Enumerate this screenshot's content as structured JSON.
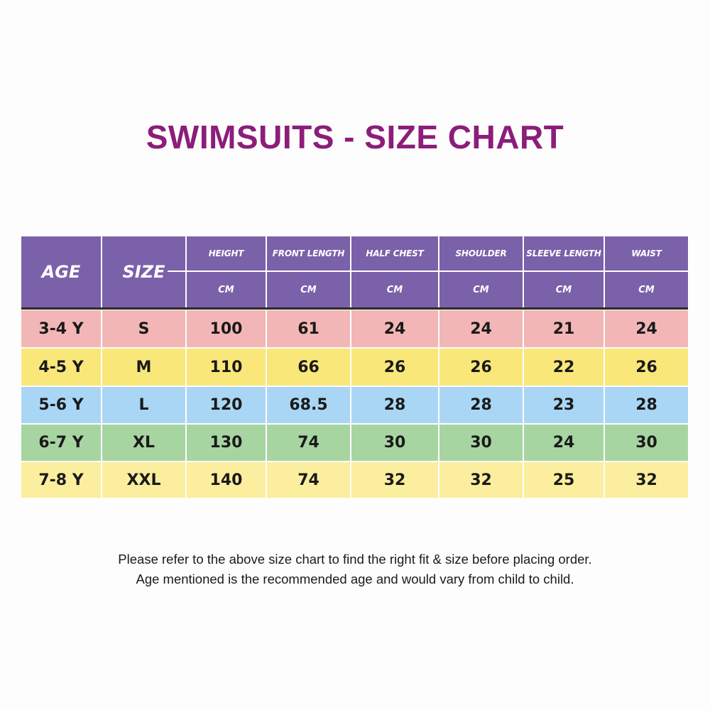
{
  "title": "SWIMSUITS - SIZE CHART",
  "title_color": "#8c1d7a",
  "header_color": "#7a61a9",
  "table": {
    "age_label": "AGE",
    "size_label": "SIZE",
    "measure_columns": [
      {
        "label": "HEIGHT",
        "unit": "CM"
      },
      {
        "label": "FRONT LENGTH",
        "unit": "CM"
      },
      {
        "label": "HALF CHEST",
        "unit": "CM"
      },
      {
        "label": "SHOULDER",
        "unit": "CM"
      },
      {
        "label": "SLEEVE LENGTH",
        "unit": "CM"
      },
      {
        "label": "WAIST",
        "unit": "CM"
      }
    ],
    "rows": [
      {
        "color": "#f3b6b6",
        "cells": [
          "3-4 Y",
          "S",
          "100",
          "61",
          "24",
          "24",
          "21",
          "24"
        ]
      },
      {
        "color": "#fae77a",
        "cells": [
          "4-5 Y",
          "M",
          "110",
          "66",
          "26",
          "26",
          "22",
          "26"
        ]
      },
      {
        "color": "#a9d6f4",
        "cells": [
          "5-6 Y",
          "L",
          "120",
          "68.5",
          "28",
          "28",
          "23",
          "28"
        ]
      },
      {
        "color": "#a6d5a2",
        "cells": [
          "6-7 Y",
          "XL",
          "130",
          "74",
          "30",
          "30",
          "24",
          "30"
        ]
      },
      {
        "color": "#fbee9e",
        "cells": [
          "7-8 Y",
          "XXL",
          "140",
          "74",
          "32",
          "32",
          "25",
          "32"
        ]
      }
    ]
  },
  "notes": [
    "Please refer to the above size chart to find the right fit & size before placing order.",
    "Age mentioned is the recommended age and would vary from child to child."
  ]
}
